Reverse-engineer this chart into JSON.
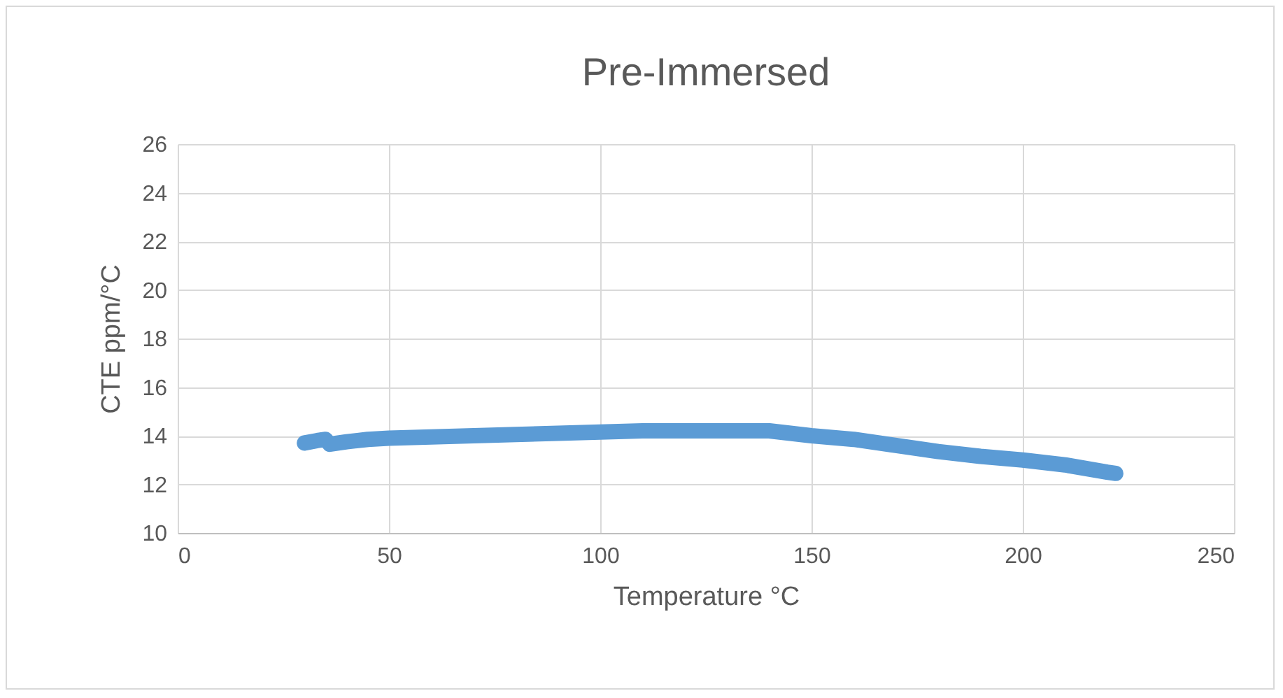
{
  "chart_data": {
    "type": "line",
    "title": "Pre-Immersed",
    "xlabel": "Temperature °C",
    "ylabel": "CTE ppm/°C",
    "x": [
      30,
      33,
      35,
      36,
      40,
      45,
      50,
      60,
      70,
      80,
      90,
      100,
      110,
      120,
      130,
      140,
      145,
      150,
      160,
      170,
      180,
      190,
      200,
      210,
      220,
      222
    ],
    "series": [
      {
        "color": "#5b9bd5",
        "values": [
          13.7,
          13.8,
          13.85,
          13.65,
          13.75,
          13.85,
          13.9,
          13.95,
          14.0,
          14.05,
          14.1,
          14.15,
          14.2,
          14.2,
          14.2,
          14.2,
          14.1,
          14.0,
          13.85,
          13.6,
          13.35,
          13.15,
          13.0,
          12.8,
          12.5,
          12.45
        ]
      }
    ],
    "xlim": [
      0,
      250
    ],
    "xticks": [
      0,
      50,
      100,
      150,
      200,
      250
    ],
    "ylim": [
      10,
      26
    ],
    "yticks": [
      10,
      12,
      14,
      16,
      18,
      20,
      22,
      24,
      26
    ],
    "grid": true,
    "line_style": "solid"
  }
}
